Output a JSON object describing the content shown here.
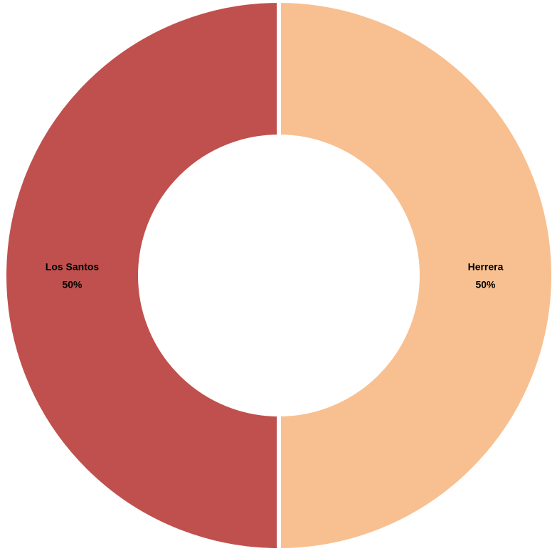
{
  "chart_data": {
    "type": "donut",
    "categories": [
      "Herrera",
      "Los Santos"
    ],
    "values": [
      50,
      50
    ],
    "value_labels": [
      "50%",
      "50%"
    ],
    "colors": [
      "#f8c090",
      "#c0504d"
    ]
  }
}
